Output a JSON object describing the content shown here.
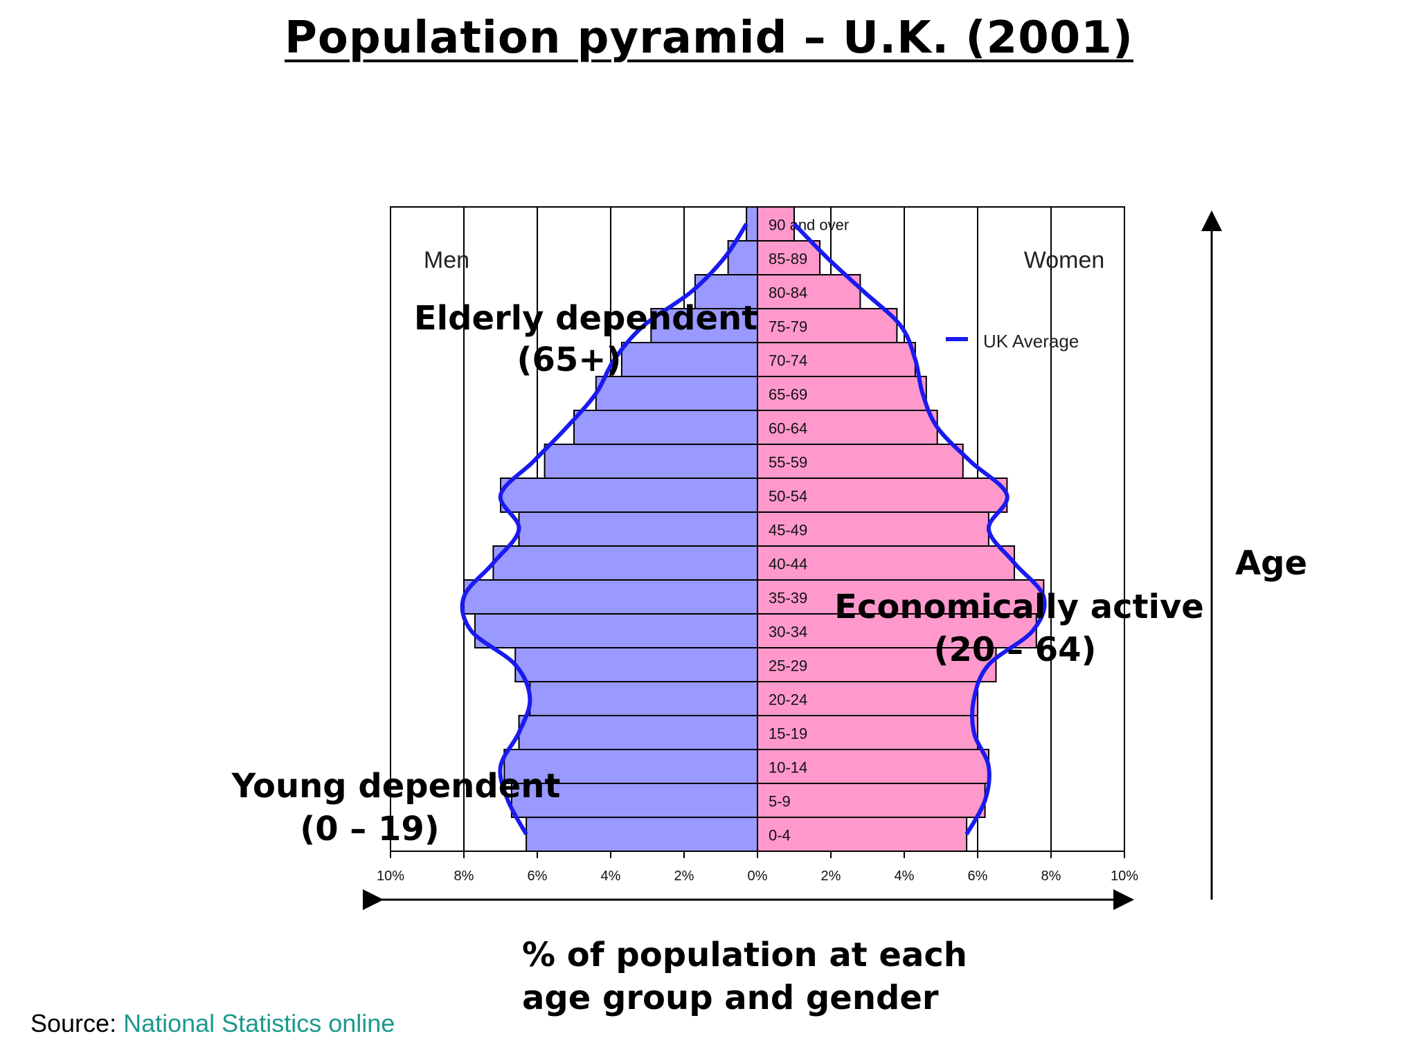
{
  "title": "Population pyramid – U.K. (2001)",
  "source": {
    "label": "Source:",
    "link_text": "National Statistics online",
    "link_color": "#1a9a8a"
  },
  "annotations": {
    "elderly": [
      "Elderly dependent",
      "(65+)"
    ],
    "active": [
      "Economically active",
      "(20 – 64)"
    ],
    "young": [
      "Young dependent",
      "(0 – 19)"
    ],
    "age_axis": "Age",
    "x_caption": [
      "% of population at each",
      "age group and gender"
    ]
  },
  "chart_data": {
    "type": "bar",
    "orientation": "horizontal-pyramid",
    "men_label": "Men",
    "women_label": "Women",
    "legend": [
      {
        "name": "UK Average",
        "color": "#1a1af0"
      }
    ],
    "legend_position": "right",
    "grid": true,
    "x_range": [
      -10,
      10
    ],
    "x_ticks": [
      "10%",
      "8%",
      "6%",
      "4%",
      "2%",
      "0%",
      "2%",
      "4%",
      "6%",
      "8%",
      "10%"
    ],
    "x_tick_values": [
      -10,
      -8,
      -6,
      -4,
      -2,
      0,
      2,
      4,
      6,
      8,
      10
    ],
    "categories": [
      "90 and over",
      "85-89",
      "80-84",
      "75-79",
      "70-74",
      "65-69",
      "60-64",
      "55-59",
      "50-54",
      "45-49",
      "40-44",
      "35-39",
      "30-34",
      "25-29",
      "20-24",
      "15-19",
      "10-14",
      "5-9",
      "0-4"
    ],
    "series": [
      {
        "name": "Men",
        "color": "#9999ff",
        "values": [
          0.3,
          0.8,
          1.7,
          2.9,
          3.7,
          4.4,
          5.0,
          5.8,
          7.0,
          6.5,
          7.2,
          8.0,
          7.7,
          6.6,
          6.2,
          6.5,
          6.9,
          6.7,
          6.3
        ]
      },
      {
        "name": "Women",
        "color": "#ff99cc",
        "values": [
          1.0,
          1.7,
          2.8,
          3.8,
          4.3,
          4.6,
          4.9,
          5.6,
          6.8,
          6.3,
          7.0,
          7.8,
          7.6,
          6.5,
          6.0,
          6.0,
          6.3,
          6.2,
          5.7
        ]
      }
    ],
    "uk_average": {
      "men": [
        0.3,
        0.9,
        1.8,
        3.1,
        3.9,
        4.4,
        5.2,
        6.1,
        7.0,
        6.5,
        7.2,
        8.0,
        7.8,
        6.6,
        6.2,
        6.5,
        7.0,
        6.8,
        6.3
      ],
      "women": [
        1.0,
        1.9,
        2.9,
        3.9,
        4.3,
        4.5,
        4.9,
        5.8,
        6.8,
        6.3,
        7.0,
        7.8,
        7.5,
        6.3,
        5.9,
        5.9,
        6.3,
        6.2,
        5.7
      ]
    }
  }
}
